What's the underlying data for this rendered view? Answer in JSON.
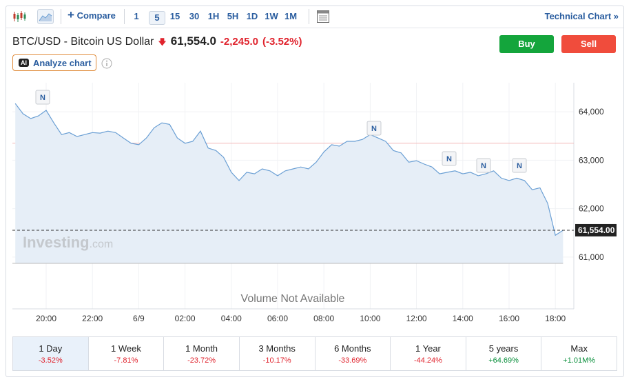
{
  "toolbar": {
    "compare": "Compare",
    "timeframes": [
      "1",
      "5",
      "15",
      "30",
      "1H",
      "5H",
      "1D",
      "1W",
      "1M"
    ],
    "active_timeframe": "5",
    "technical_chart": "Technical Chart »"
  },
  "header": {
    "title": "BTC/USD - Bitcoin US Dollar",
    "price": "61,554.0",
    "change": "-2,245.0",
    "change_percent": "(-3.52%)",
    "buy": "Buy",
    "sell": "Sell",
    "ai_badge": "AI",
    "analyze": "Analyze chart"
  },
  "chart_data": {
    "type": "line",
    "categories": [
      null,
      null,
      null,
      null,
      "20:00",
      null,
      null,
      null,
      null,
      null,
      "22:00",
      null,
      null,
      null,
      null,
      null,
      "6/9",
      null,
      null,
      null,
      null,
      null,
      "02:00",
      null,
      null,
      null,
      null,
      null,
      "04:00",
      null,
      null,
      null,
      null,
      null,
      "06:00",
      null,
      null,
      null,
      null,
      null,
      "08:00",
      null,
      null,
      null,
      null,
      null,
      "10:00",
      null,
      null,
      null,
      null,
      null,
      "12:00",
      null,
      null,
      null,
      null,
      null,
      "14:00",
      null,
      null,
      null,
      null,
      null,
      "16:00",
      null,
      null,
      null,
      null,
      null,
      "18:00",
      null
    ],
    "series": [
      {
        "color": "#6a9fd4",
        "values": [
          64170,
          63960,
          63860,
          63915,
          64030,
          63770,
          63530,
          63570,
          63490,
          63530,
          63570,
          63560,
          63600,
          63570,
          63460,
          63350,
          63320,
          63460,
          63670,
          63770,
          63740,
          63460,
          63350,
          63390,
          63600,
          63250,
          63200,
          63060,
          62750,
          62580,
          62750,
          62720,
          62820,
          62780,
          62680,
          62780,
          62820,
          62860,
          62820,
          62960,
          63170,
          63320,
          63290,
          63390,
          63390,
          63430,
          63530,
          63460,
          63390,
          63200,
          63150,
          62960,
          62990,
          62920,
          62860,
          62720,
          62750,
          62780,
          62720,
          62750,
          62680,
          62720,
          62780,
          62630,
          62580,
          62630,
          62580,
          62390,
          62430,
          62110,
          61450,
          61554
        ]
      }
    ],
    "ylim": [
      60870,
      64600
    ],
    "yticks": [
      {
        "value": 61000,
        "label": "61,000"
      },
      {
        "value": 62000,
        "label": "62,000"
      },
      {
        "value": 63000,
        "label": "63,000"
      },
      {
        "value": 64000,
        "label": "64,000"
      }
    ],
    "last_price": {
      "value": 61554,
      "label": "61,554.00"
    },
    "reference_line": 63350,
    "news_markers": [
      "N",
      "N",
      "N",
      "N",
      "N"
    ],
    "watermark": "Investing",
    "watermark_suffix": ".com",
    "volume_note": "Volume Not Available"
  },
  "periods": [
    {
      "label": "1 Day",
      "change": "-3.52%"
    },
    {
      "label": "1 Week",
      "change": "-7.81%"
    },
    {
      "label": "1 Month",
      "change": "-23.72%"
    },
    {
      "label": "3 Months",
      "change": "-10.17%"
    },
    {
      "label": "6 Months",
      "change": "-33.69%"
    },
    {
      "label": "1 Year",
      "change": "-44.24%"
    },
    {
      "label": "5 years",
      "change": "+64.69%"
    },
    {
      "label": "Max",
      "change": "+1.01M%"
    }
  ]
}
